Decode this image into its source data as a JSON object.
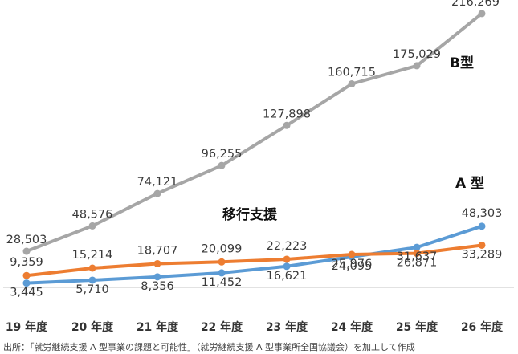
{
  "chart_data": {
    "type": "line",
    "categories": [
      "19 年度",
      "20 年度",
      "21 年度",
      "22 年度",
      "23 年度",
      "24 年度",
      "25 年度",
      "26 年度"
    ],
    "series": [
      {
        "name": "B型",
        "color": "#a6a6a6",
        "values": [
          28503,
          48576,
          74121,
          96255,
          127898,
          160715,
          175029,
          216269
        ],
        "labels": [
          "28,503",
          "48,576",
          "74,121",
          "96,255",
          "127,898",
          "160,715",
          "175,029",
          "216,269"
        ]
      },
      {
        "name": "A 型",
        "color": "#5b9bd5",
        "values": [
          3445,
          5710,
          8356,
          11452,
          16621,
          24095,
          31637,
          48303
        ],
        "labels": [
          "3,445",
          "5,710",
          "8,356",
          "11,452",
          "16,621",
          "24,095",
          "31,637",
          "48,303"
        ]
      },
      {
        "name": "移行支援",
        "color": "#ed7d31",
        "values": [
          9359,
          15214,
          18707,
          20099,
          22223,
          25976,
          26871,
          33289
        ],
        "labels": [
          "9,359",
          "15,214",
          "18,707",
          "20,099",
          "22,223",
          "25,976",
          "26,871",
          "33,289"
        ]
      }
    ],
    "ylim": [
      0,
      220000
    ],
    "grid": false,
    "legend": "none",
    "source": "出所：「就労継続支援 A 型事業の課題と可能性」（就労継続支援 A 型事業所全国協議会）を加工して作成"
  }
}
